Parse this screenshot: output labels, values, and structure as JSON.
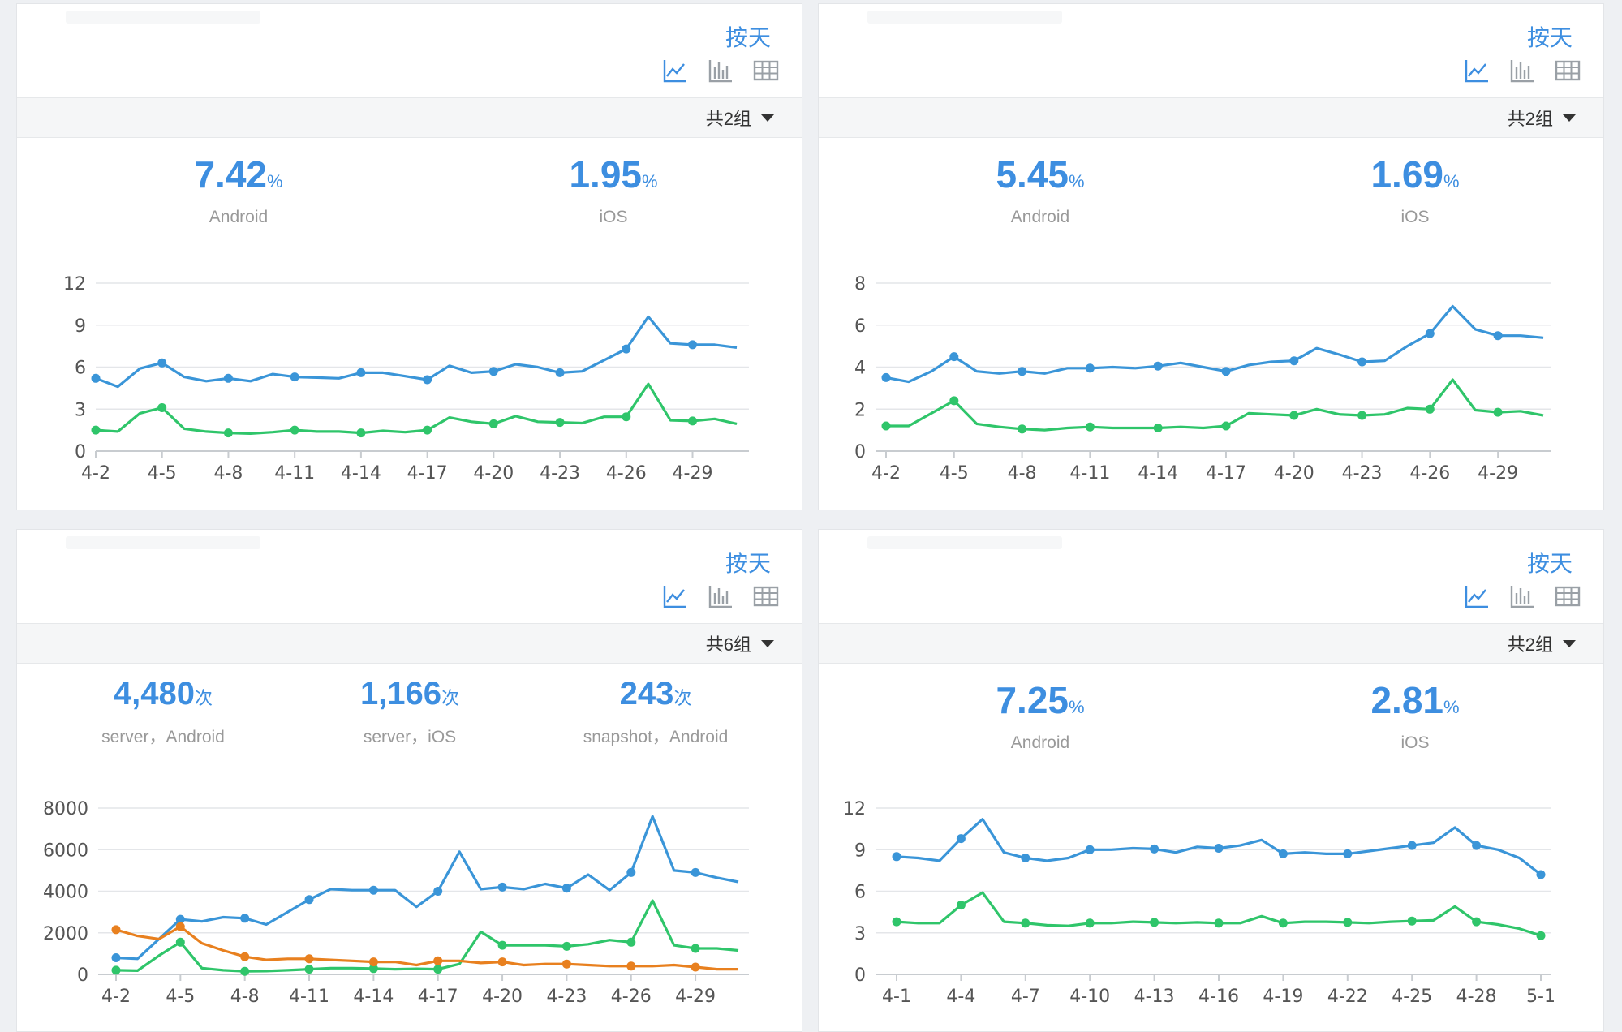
{
  "colors": {
    "accent": "#3d8ee0",
    "android": "#3a95d8",
    "ios": "#2fc56a",
    "snapshot": "#e8801f"
  },
  "icons": [
    "line-chart-icon",
    "bar-chart-icon",
    "table-icon"
  ],
  "panels": [
    {
      "mode_label": "按天",
      "group_label": "共2组",
      "kpis": [
        {
          "value": "7.42",
          "unit": "%",
          "label": "Android"
        },
        {
          "value": "1.95",
          "unit": "%",
          "label": "iOS"
        }
      ],
      "chart_data": {
        "type": "line",
        "categories": [
          "4-2",
          "4-3",
          "4-4",
          "4-5",
          "4-6",
          "4-7",
          "4-8",
          "4-9",
          "4-10",
          "4-11",
          "4-12",
          "4-13",
          "4-14",
          "4-15",
          "4-16",
          "4-17",
          "4-18",
          "4-19",
          "4-20",
          "4-21",
          "4-22",
          "4-23",
          "4-24",
          "4-25",
          "4-26",
          "4-27",
          "4-28",
          "4-29",
          "4-30",
          "5-1"
        ],
        "tick_labels": [
          "4-2",
          "4-5",
          "4-8",
          "4-11",
          "4-14",
          "4-17",
          "4-20",
          "4-23",
          "4-26",
          "4-29"
        ],
        "yticks": [
          0,
          3,
          6,
          9,
          12
        ],
        "ylim": [
          0,
          12
        ],
        "grid": true,
        "series": [
          {
            "values": [
              5.2,
              4.6,
              5.9,
              6.3,
              5.3,
              5.0,
              5.2,
              5.0,
              5.5,
              5.3,
              5.25,
              5.2,
              5.6,
              5.6,
              5.35,
              5.1,
              6.1,
              5.6,
              5.7,
              6.2,
              6.0,
              5.6,
              5.7,
              6.5,
              7.3,
              9.6,
              7.7,
              7.6,
              7.6,
              7.4
            ]
          },
          {
            "values": [
              1.5,
              1.4,
              2.7,
              3.1,
              1.6,
              1.4,
              1.3,
              1.25,
              1.35,
              1.5,
              1.4,
              1.4,
              1.3,
              1.45,
              1.35,
              1.5,
              2.4,
              2.1,
              1.95,
              2.5,
              2.1,
              2.05,
              2.0,
              2.45,
              2.45,
              4.8,
              2.2,
              2.15,
              2.3,
              1.95
            ]
          }
        ]
      }
    },
    {
      "mode_label": "按天",
      "group_label": "共2组",
      "kpis": [
        {
          "value": "5.45",
          "unit": "%",
          "label": "Android"
        },
        {
          "value": "1.69",
          "unit": "%",
          "label": "iOS"
        }
      ],
      "chart_data": {
        "type": "line",
        "categories": [
          "4-2",
          "4-3",
          "4-4",
          "4-5",
          "4-6",
          "4-7",
          "4-8",
          "4-9",
          "4-10",
          "4-11",
          "4-12",
          "4-13",
          "4-14",
          "4-15",
          "4-16",
          "4-17",
          "4-18",
          "4-19",
          "4-20",
          "4-21",
          "4-22",
          "4-23",
          "4-24",
          "4-25",
          "4-26",
          "4-27",
          "4-28",
          "4-29",
          "4-30",
          "5-1"
        ],
        "tick_labels": [
          "4-2",
          "4-5",
          "4-8",
          "4-11",
          "4-14",
          "4-17",
          "4-20",
          "4-23",
          "4-26",
          "4-29"
        ],
        "yticks": [
          0,
          2,
          4,
          6,
          8
        ],
        "ylim": [
          0,
          8
        ],
        "grid": true,
        "series": [
          {
            "values": [
              3.5,
              3.3,
              3.8,
              4.5,
              3.8,
              3.7,
              3.8,
              3.7,
              3.95,
              3.95,
              4.0,
              3.95,
              4.05,
              4.2,
              4.0,
              3.8,
              4.1,
              4.25,
              4.3,
              4.9,
              4.6,
              4.25,
              4.3,
              5.0,
              5.6,
              6.9,
              5.8,
              5.5,
              5.5,
              5.4
            ]
          },
          {
            "values": [
              1.2,
              1.2,
              1.8,
              2.4,
              1.3,
              1.15,
              1.05,
              1.0,
              1.1,
              1.15,
              1.1,
              1.1,
              1.1,
              1.15,
              1.1,
              1.2,
              1.8,
              1.75,
              1.7,
              2.0,
              1.75,
              1.7,
              1.75,
              2.05,
              2.0,
              3.4,
              1.95,
              1.85,
              1.9,
              1.7
            ]
          }
        ]
      }
    },
    {
      "mode_label": "按天",
      "group_label": "共6组",
      "kpis": [
        {
          "value": "4,480",
          "unit": "次",
          "label": "server，Android"
        },
        {
          "value": "1,166",
          "unit": "次",
          "label": "server，iOS"
        },
        {
          "value": "243",
          "unit": "次",
          "label": "snapshot，Android"
        }
      ],
      "chart_data": {
        "type": "line",
        "categories": [
          "4-2",
          "4-3",
          "4-4",
          "4-5",
          "4-6",
          "4-7",
          "4-8",
          "4-9",
          "4-10",
          "4-11",
          "4-12",
          "4-13",
          "4-14",
          "4-15",
          "4-16",
          "4-17",
          "4-18",
          "4-19",
          "4-20",
          "4-21",
          "4-22",
          "4-23",
          "4-24",
          "4-25",
          "4-26",
          "4-27",
          "4-28",
          "4-29",
          "4-30",
          "5-1"
        ],
        "tick_labels": [
          "4-2",
          "4-5",
          "4-8",
          "4-11",
          "4-14",
          "4-17",
          "4-20",
          "4-23",
          "4-26",
          "4-29"
        ],
        "yticks": [
          0,
          2000,
          4000,
          6000,
          8000
        ],
        "ylim": [
          0,
          8000
        ],
        "grid": true,
        "series": [
          {
            "values": [
              800,
              750,
              1700,
              2650,
              2550,
              2750,
              2700,
              2400,
              3000,
              3600,
              4100,
              4050,
              4050,
              4050,
              3250,
              4000,
              5900,
              4100,
              4200,
              4100,
              4350,
              4150,
              4800,
              4050,
              4900,
              7600,
              5000,
              4900,
              4650,
              4450
            ]
          },
          {
            "values": [
              200,
              180,
              900,
              1550,
              300,
              200,
              150,
              160,
              200,
              250,
              300,
              300,
              280,
              250,
              270,
              250,
              500,
              2050,
              1400,
              1400,
              1400,
              1350,
              1450,
              1650,
              1550,
              3550,
              1400,
              1250,
              1250,
              1150
            ]
          },
          {
            "values": [
              2150,
              1850,
              1700,
              2300,
              1500,
              1150,
              850,
              700,
              750,
              750,
              700,
              650,
              600,
              600,
              450,
              650,
              650,
              550,
              600,
              450,
              500,
              500,
              450,
              400,
              400,
              400,
              450,
              350,
              250,
              250
            ]
          }
        ]
      }
    },
    {
      "mode_label": "按天",
      "group_label": "共2组",
      "kpis": [
        {
          "value": "7.25",
          "unit": "%",
          "label": "Android"
        },
        {
          "value": "2.81",
          "unit": "%",
          "label": "iOS"
        }
      ],
      "chart_data": {
        "type": "line",
        "categories": [
          "4-1",
          "4-2",
          "4-3",
          "4-4",
          "4-5",
          "4-6",
          "4-7",
          "4-8",
          "4-9",
          "4-10",
          "4-11",
          "4-12",
          "4-13",
          "4-14",
          "4-15",
          "4-16",
          "4-17",
          "4-18",
          "4-19",
          "4-20",
          "4-21",
          "4-22",
          "4-23",
          "4-24",
          "4-25",
          "4-26",
          "4-27",
          "4-28",
          "4-29",
          "4-30",
          "5-1"
        ],
        "tick_labels": [
          "4-1",
          "4-4",
          "4-7",
          "4-10",
          "4-13",
          "4-16",
          "4-19",
          "4-22",
          "4-25",
          "4-28",
          "5-1"
        ],
        "yticks": [
          0,
          3,
          6,
          9,
          12
        ],
        "ylim": [
          0,
          12
        ],
        "grid": true,
        "series": [
          {
            "values": [
              8.5,
              8.4,
              8.2,
              9.8,
              11.2,
              8.8,
              8.4,
              8.2,
              8.4,
              9.0,
              9.0,
              9.1,
              9.05,
              8.8,
              9.2,
              9.1,
              9.3,
              9.7,
              8.7,
              8.8,
              8.7,
              8.7,
              8.9,
              9.1,
              9.3,
              9.5,
              10.6,
              9.3,
              9.0,
              8.4,
              7.2
            ]
          },
          {
            "values": [
              3.8,
              3.7,
              3.7,
              5.0,
              5.9,
              3.8,
              3.7,
              3.55,
              3.5,
              3.7,
              3.7,
              3.8,
              3.75,
              3.7,
              3.75,
              3.7,
              3.7,
              4.2,
              3.7,
              3.8,
              3.8,
              3.75,
              3.7,
              3.8,
              3.85,
              3.9,
              4.9,
              3.8,
              3.6,
              3.3,
              2.8
            ]
          }
        ]
      }
    }
  ]
}
